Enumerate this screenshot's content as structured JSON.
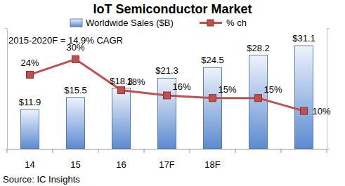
{
  "chart_data": {
    "type": "bar",
    "title": "IoT Semiconductor Market",
    "categories": [
      "14",
      "15",
      "16",
      "17F",
      "18F",
      null,
      null
    ],
    "series": [
      {
        "name": "Worldwide Sales ($B)",
        "type": "bar",
        "color": "#5b8ad0",
        "values": [
          11.9,
          15.5,
          18.3,
          21.3,
          24.5,
          28.2,
          31.1
        ],
        "value_labels": [
          "$11.9",
          "$15.5",
          "$18.3",
          "$21.3",
          "$24.5",
          "$28.2",
          "$31.1"
        ]
      },
      {
        "name": "% ch",
        "type": "line",
        "axis": "y2",
        "color": "#c0504d",
        "marker": "square",
        "values": [
          24,
          30,
          18,
          16,
          15,
          15,
          10
        ],
        "value_labels": [
          "24%",
          "30%",
          "18%",
          "16%",
          "15%",
          "15%",
          "10%"
        ]
      }
    ],
    "ylim": [
      0,
      36.4
    ],
    "yticks": [
      0,
      36.4
    ],
    "y2lim": [
      -4.6,
      42
    ],
    "y2ticks": [
      -4.6,
      42
    ],
    "annotations": [
      "2015-2020F = 14.9% CAGR",
      "Source: IC Insights"
    ],
    "data_labels": true,
    "tick_labels": "x",
    "legend": "top",
    "grid": false
  }
}
